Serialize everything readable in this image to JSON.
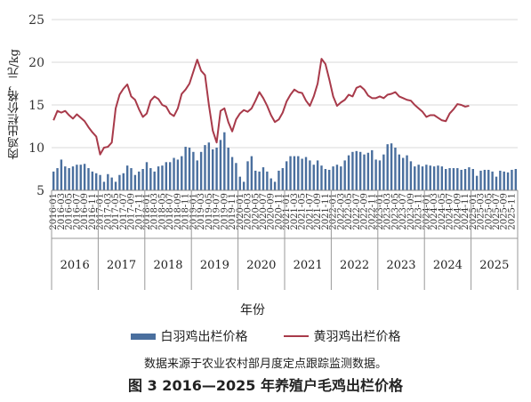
{
  "chart_data": {
    "type": "bar+line",
    "ylabel": "肉鸡出栏价格，元/kg",
    "xlabel": "年份",
    "ylim": [
      5,
      25
    ],
    "yticks": [
      5,
      10,
      15,
      20,
      25
    ],
    "grid": "horizontal",
    "legend": "bottom",
    "month_labels": [
      "2016-01",
      "2016-03",
      "2016-05",
      "2016-07",
      "2016-09",
      "2016-11",
      "2017-01",
      "2017-03",
      "2017-05",
      "2017-07",
      "2017-09",
      "2017-11",
      "2018-01",
      "2018-03",
      "2018-05",
      "2018-07",
      "2018-09",
      "2018-11",
      "2019-01",
      "2019-03",
      "2019-05",
      "2019-07",
      "2019-09",
      "2019-11",
      "2020-01",
      "2020-03",
      "2020-05",
      "2020-07",
      "2020-09",
      "2020-11",
      "2021-01",
      "2021-03",
      "2021-05",
      "2021-07",
      "2021-09",
      "2021-11",
      "2022-01",
      "2022-03",
      "2022-05",
      "2022-07",
      "2022-09",
      "2022-11",
      "2023-01",
      "2023-03",
      "2023-05",
      "2023-07",
      "2023-09",
      "2023-11",
      "2024-01",
      "2024-03",
      "2024-05",
      "2024-07",
      "2024-09",
      "2024-11",
      "2025-01",
      "2025-03",
      "2025-05",
      "2025-07",
      "2025-09",
      "2025-11"
    ],
    "years": [
      "2016",
      "2017",
      "2018",
      "2019",
      "2020",
      "2021",
      "2022",
      "2023",
      "2024",
      "2025"
    ],
    "series": [
      {
        "name": "白羽鸡出栏价格",
        "type": "bar",
        "color": "#4a6f9e",
        "values": [
          7.2,
          7.6,
          8.6,
          7.8,
          7.6,
          7.8,
          8.0,
          8.0,
          8.1,
          7.6,
          7.2,
          7.0,
          6.8,
          6.0,
          6.9,
          6.5,
          6.0,
          6.8,
          7.0,
          7.9,
          7.6,
          6.8,
          7.2,
          7.5,
          8.3,
          7.6,
          7.2,
          7.8,
          7.9,
          8.3,
          8.3,
          8.8,
          8.6,
          9.0,
          10.1,
          10.0,
          9.5,
          8.5,
          9.5,
          10.3,
          10.6,
          9.8,
          10.0,
          10.9,
          11.8,
          10.0,
          8.9,
          8.2,
          6.6,
          6.0,
          8.4,
          9.0,
          7.3,
          7.2,
          7.7,
          7.2,
          6.4,
          6.0,
          7.3,
          7.6,
          8.4,
          9.0,
          9.0,
          9.0,
          8.7,
          8.9,
          8.5,
          8.0,
          8.5,
          7.9,
          7.5,
          7.4,
          7.8,
          8.0,
          7.8,
          8.5,
          9.1,
          9.5,
          9.6,
          9.5,
          9.2,
          9.4,
          9.7,
          8.6,
          8.5,
          9.2,
          10.4,
          10.5,
          10.0,
          9.2,
          8.8,
          9.1,
          8.4,
          7.8,
          8.0,
          7.8,
          8.0,
          7.9,
          7.8,
          7.9,
          7.8,
          7.5,
          7.6,
          7.6,
          7.6,
          7.4,
          7.5,
          7.7,
          7.5,
          6.7,
          7.3,
          7.4,
          7.4,
          7.2,
          6.6,
          7.3,
          7.2,
          7.1,
          7.4,
          7.5
        ]
      },
      {
        "name": "黄羽鸡出栏价格",
        "type": "line",
        "color": "#a83a4a",
        "values": [
          13.2,
          14.3,
          14.1,
          14.3,
          13.8,
          13.4,
          13.9,
          13.5,
          13.1,
          12.4,
          11.8,
          11.3,
          9.2,
          10.0,
          10.1,
          10.6,
          14.6,
          16.2,
          16.9,
          17.4,
          16.0,
          15.6,
          14.5,
          13.6,
          14.0,
          15.5,
          16.0,
          15.7,
          15.0,
          14.8,
          14.0,
          13.7,
          14.6,
          16.3,
          16.8,
          17.5,
          18.9,
          20.3,
          19.0,
          18.5,
          15.0,
          12.0,
          10.6,
          14.3,
          14.6,
          13.0,
          11.9,
          13.3,
          14.0,
          14.4,
          14.2,
          14.6,
          15.5,
          16.5,
          15.8,
          14.9,
          13.8,
          13.0,
          13.3,
          14.1,
          15.4,
          16.2,
          16.8,
          16.5,
          16.4,
          15.5,
          14.9,
          16.0,
          17.5,
          20.4,
          19.8,
          18.0,
          16.0,
          14.9,
          15.3,
          15.6,
          16.2,
          16.0,
          17.0,
          17.2,
          16.8,
          16.1,
          15.8,
          15.8,
          16.0,
          15.8,
          16.2,
          16.3,
          16.5,
          16.0,
          15.8,
          15.6,
          15.5,
          15.0,
          14.6,
          14.2,
          13.6,
          13.8,
          13.8,
          13.5,
          13.2,
          13.1,
          14.0,
          14.5,
          15.1,
          15.0,
          14.8,
          14.9
        ]
      }
    ]
  },
  "legend_labels": {
    "white": "白羽鸡出栏价格",
    "yellow": "黄羽鸡出栏价格"
  },
  "axis_text": {
    "ylabel": "肉鸡出栏价格，元/kg",
    "xlabel": "年份"
  },
  "source_note": "数据来源于农业农村部月度定点跟踪监测数据。",
  "caption": "图 3 2016—2025 年养殖户毛鸡出栏价格"
}
